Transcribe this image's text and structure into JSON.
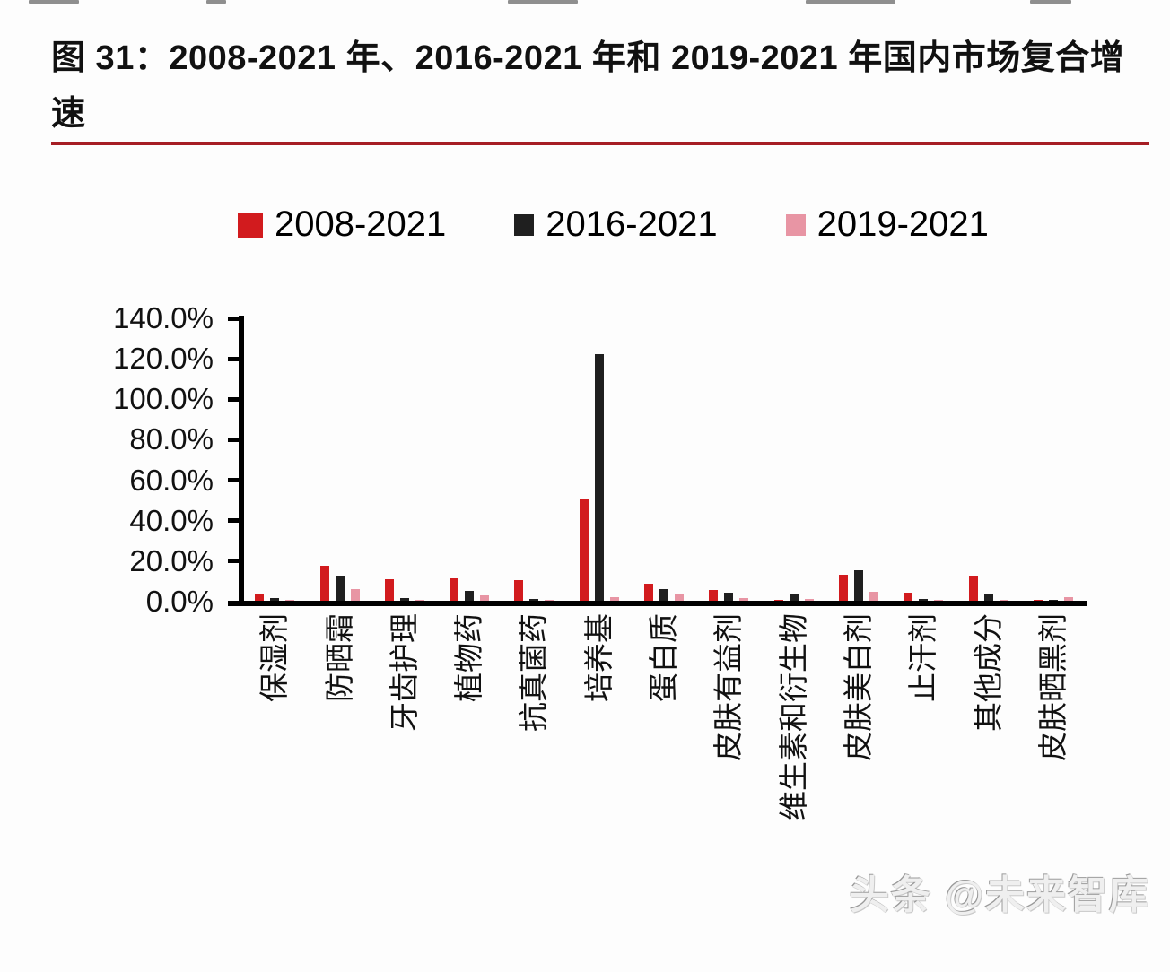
{
  "figure": {
    "caption": "图 31：2008-2021 年、2016-2021 年和 2019-2021 年国内市场复合增速",
    "rule_color": "#a61e24"
  },
  "chart_data": {
    "type": "bar",
    "title": "图 31：2008-2021 年、2016-2021 年和 2019-2021 年国内市场复合增速",
    "categories": [
      "保湿剂",
      "防晒霜",
      "牙齿护理",
      "植物药",
      "抗真菌药",
      "培养基",
      "蛋白质",
      "皮肤有益剂",
      "维生素和衍生物",
      "皮肤美白剂",
      "止汗剂",
      "其他成分",
      "皮肤晒黑剂"
    ],
    "series": [
      {
        "name": "2008-2021",
        "color": "#d21b1e",
        "values": [
          3.5,
          17.5,
          10.5,
          11,
          10,
          50,
          8.5,
          5.5,
          0.5,
          13,
          4,
          12.5,
          0.3
        ]
      },
      {
        "name": "2016-2021",
        "color": "#1f1f1f",
        "values": [
          1.5,
          12.5,
          1.5,
          5,
          1,
          122,
          6,
          4,
          3,
          15,
          1,
          3,
          0.3
        ]
      },
      {
        "name": "2019-2021",
        "color": "#e895a4",
        "values": [
          0.5,
          6,
          0.5,
          2.5,
          0.5,
          2,
          3,
          1.5,
          1,
          4.5,
          0.5,
          0.5,
          2
        ]
      }
    ],
    "xlabel": "",
    "ylabel": "",
    "ylim": [
      0,
      140
    ],
    "ytick_step": 20,
    "ytick_labels": [
      "140.0%",
      "120.0%",
      "100.0%",
      "80.0%",
      "60.0%",
      "40.0%",
      "20.0%",
      "0.0%"
    ],
    "grid": false,
    "legend_position": "top"
  },
  "watermark": {
    "text": "头条 @未来智库"
  }
}
